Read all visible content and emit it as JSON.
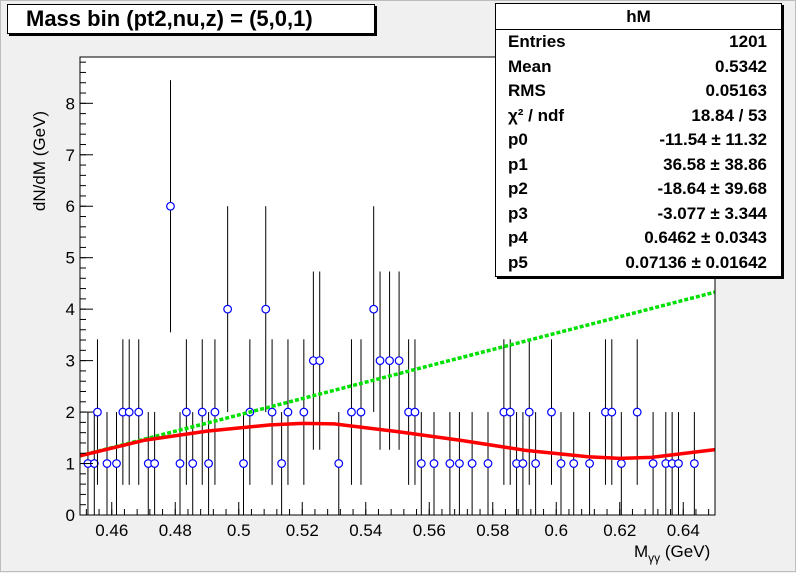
{
  "title": "Mass bin (pt2,nu,z) = (5,0,1)",
  "stats": {
    "name": "hM",
    "rows": [
      {
        "key": "Entries",
        "value": "1201"
      },
      {
        "key": "Mean",
        "value": "0.5342"
      },
      {
        "key": "RMS",
        "value": "0.05163"
      },
      {
        "key": "χ² / ndf",
        "value": "18.84 / 53"
      },
      {
        "key": "p0",
        "value": "-11.54 ± 11.32"
      },
      {
        "key": "p1",
        "value": "36.58 ± 38.86"
      },
      {
        "key": "p2",
        "value": "-18.64 ± 39.68"
      },
      {
        "key": "p3",
        "value": "-3.077 ± 3.344"
      },
      {
        "key": "p4",
        "value": "0.6462 ± 0.0343"
      },
      {
        "key": "p5",
        "value": "0.07136 ± 0.01642"
      }
    ]
  },
  "chart_data": {
    "type": "scatter",
    "title": "Mass bin (pt2,nu,z) = (5,0,1)",
    "xlabel": "M_γγ (GeV)",
    "ylabel": "dN/dM (GeV)",
    "xlim": [
      0.45,
      0.65
    ],
    "ylim": [
      0,
      8.9
    ],
    "xticks": [
      0.46,
      0.48,
      0.5,
      0.52,
      0.54,
      0.56,
      0.58,
      0.6,
      0.62,
      0.64
    ],
    "xtick_labels": [
      "0.46",
      "0.48",
      "0.5",
      "0.52",
      "0.54",
      "0.56",
      "0.58",
      "0.6",
      "0.62",
      "0.64"
    ],
    "yticks": [
      0,
      1,
      2,
      3,
      4,
      5,
      6,
      7,
      8
    ],
    "ytick_labels": [
      "0",
      "1",
      "2",
      "3",
      "4",
      "5",
      "6",
      "7",
      "8"
    ],
    "points": {
      "x": [
        0.452,
        0.454,
        0.456,
        0.458,
        0.46,
        0.462,
        0.464,
        0.466,
        0.468,
        0.47,
        0.472,
        0.474,
        0.476,
        0.478,
        0.48,
        0.482,
        0.484,
        0.486,
        0.488,
        0.49,
        0.492,
        0.494,
        0.496,
        0.498,
        0.502,
        0.504,
        0.506,
        0.508,
        0.51,
        0.512,
        0.514,
        0.516,
        0.52,
        0.522,
        0.524,
        0.526,
        0.53,
        0.534,
        0.538,
        0.54,
        0.542,
        0.544,
        0.546,
        0.548,
        0.55,
        0.552,
        0.554,
        0.556,
        0.56,
        0.564,
        0.566,
        0.568,
        0.572,
        0.576,
        0.58,
        0.582,
        0.584,
        0.586,
        0.588,
        0.59,
        0.592,
        0.596,
        0.598,
        0.602,
        0.606,
        0.61,
        0.612,
        0.614,
        0.616,
        0.618,
        0.62,
        0.624,
        0.626,
        0.628,
        0.63,
        0.634
      ],
      "y": [
        1,
        1,
        2,
        1,
        1,
        2,
        2,
        2,
        1,
        1,
        6,
        1,
        2,
        1,
        2,
        1,
        2,
        4,
        1,
        2,
        4,
        2,
        1,
        2,
        2,
        3,
        3,
        1,
        2,
        2,
        4,
        3,
        3,
        3,
        2,
        2,
        1,
        1,
        1,
        1,
        2,
        2,
        1,
        2,
        1,
        1,
        2,
        1,
        1,
        2,
        1,
        1,
        2,
        2,
        2,
        1,
        1,
        2,
        1,
        1,
        1,
        1,
        2,
        1,
        1,
        1,
        1,
        1,
        1,
        1,
        1,
        1,
        1,
        1,
        1,
        1
      ]
    },
    "points_exact": {
      "x": [
        0.4525,
        0.4545,
        0.4555,
        0.4585,
        0.4615,
        0.4635,
        0.4655,
        0.4685,
        0.4715,
        0.4735,
        0.4785,
        0.4815,
        0.4835,
        0.4855,
        0.4885,
        0.4905,
        0.4925,
        0.4965,
        0.5015,
        0.5035,
        0.5085,
        0.5105,
        0.5135,
        0.5155,
        0.5205,
        0.5235,
        0.5255,
        0.5315,
        0.5355,
        0.5385,
        0.5425,
        0.5445,
        0.5475,
        0.5505,
        0.5535,
        0.5555,
        0.5575,
        0.5615,
        0.5665,
        0.5695,
        0.5735,
        0.5785,
        0.5835,
        0.5855,
        0.5875,
        0.5895,
        0.5915,
        0.5935,
        0.5985,
        0.6015,
        0.6055,
        0.6105,
        0.6155,
        0.6175,
        0.6205,
        0.6255,
        0.6305,
        0.6345,
        0.6365,
        0.6385,
        0.6435
      ],
      "y": [
        1,
        1,
        2,
        1,
        1,
        2,
        2,
        2,
        1,
        1,
        6,
        1,
        2,
        1,
        2,
        1,
        2,
        4,
        1,
        2,
        4,
        2,
        1,
        2,
        2,
        3,
        3,
        1,
        2,
        2,
        4,
        3,
        3,
        3,
        2,
        2,
        1,
        1,
        1,
        1,
        1,
        1,
        2,
        2,
        1,
        1,
        2,
        1,
        2,
        1,
        1,
        1,
        2,
        2,
        1,
        2,
        1,
        1,
        1,
        1,
        1
      ]
    },
    "fit_total": {
      "name": "",
      "color": "#ff0000"
    },
    "fit_background": {
      "name": "",
      "color": "#00e000",
      "x": [
        0.45,
        0.65
      ],
      "y": [
        1.15,
        4.33
      ]
    },
    "total_curve": {
      "x": [
        0.45,
        0.47,
        0.49,
        0.51,
        0.52,
        0.53,
        0.55,
        0.57,
        0.59,
        0.61,
        0.62,
        0.63,
        0.65
      ],
      "y": [
        1.15,
        1.45,
        1.63,
        1.75,
        1.78,
        1.77,
        1.62,
        1.45,
        1.26,
        1.13,
        1.1,
        1.12,
        1.27
      ]
    },
    "marker_color": "#0000ff",
    "grid": false
  }
}
